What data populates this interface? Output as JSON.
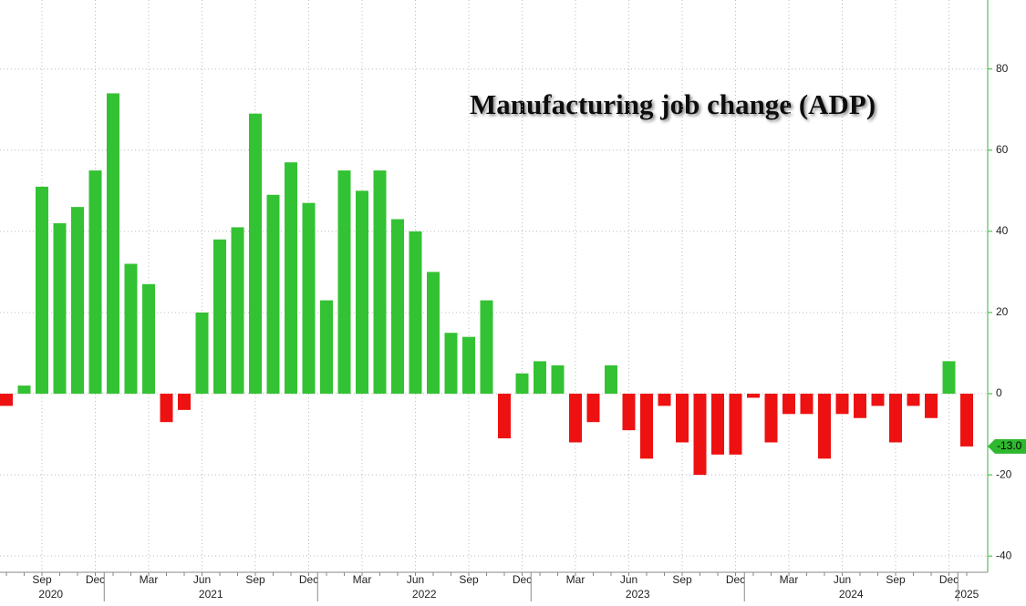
{
  "chart_data": {
    "type": "bar",
    "title": "Manufacturing job change (ADP)",
    "categories": [
      null,
      null,
      "Sep",
      null,
      null,
      "Dec",
      null,
      null,
      "Mar",
      null,
      null,
      "Jun",
      null,
      null,
      "Sep",
      null,
      null,
      "Dec",
      null,
      null,
      "Mar",
      null,
      null,
      "Jun",
      null,
      null,
      "Sep",
      null,
      null,
      "Dec",
      null,
      null,
      "Mar",
      null,
      null,
      "Jun",
      null,
      null,
      "Sep",
      null,
      null,
      "Dec",
      null,
      null,
      "Mar",
      null,
      null,
      "Jun",
      null,
      null,
      "Sep",
      null,
      null,
      "Dec",
      null
    ],
    "years": [
      "2020",
      "2021",
      "2022",
      "2023",
      "2024",
      "2025"
    ],
    "values": [
      -3,
      2,
      51,
      42,
      46,
      55,
      74,
      32,
      27,
      -7,
      -4,
      20,
      38,
      41,
      69,
      49,
      57,
      47,
      23,
      55,
      50,
      55,
      43,
      40,
      30,
      15,
      14,
      23,
      -11,
      5,
      8,
      7,
      -12,
      -7,
      7,
      -9,
      -16,
      -3,
      -12,
      -20,
      -15,
      -15,
      -1,
      -12,
      -5,
      -5,
      -16,
      -5,
      -6,
      -3,
      -12,
      -3,
      -6,
      8,
      -13
    ],
    "value_labels": [
      null,
      null,
      null,
      null,
      null,
      null,
      null,
      null,
      null,
      null,
      null,
      null,
      null,
      null,
      null,
      null,
      null,
      null,
      null,
      null,
      null,
      null,
      null,
      null,
      null,
      null,
      null,
      null,
      null,
      null,
      null,
      null,
      null,
      null,
      null,
      null,
      null,
      null,
      null,
      null,
      null,
      null,
      null,
      null,
      null,
      null,
      null,
      null,
      null,
      null,
      null,
      null,
      null,
      null,
      "-13.0"
    ],
    "positive_color": "#33c233",
    "negative_color": "#ee1111",
    "axis_color": "#2fb82f",
    "ylim": [
      -44,
      97
    ],
    "yticks": [
      -40,
      -20,
      0,
      20,
      40,
      60,
      80
    ],
    "grid": true
  }
}
